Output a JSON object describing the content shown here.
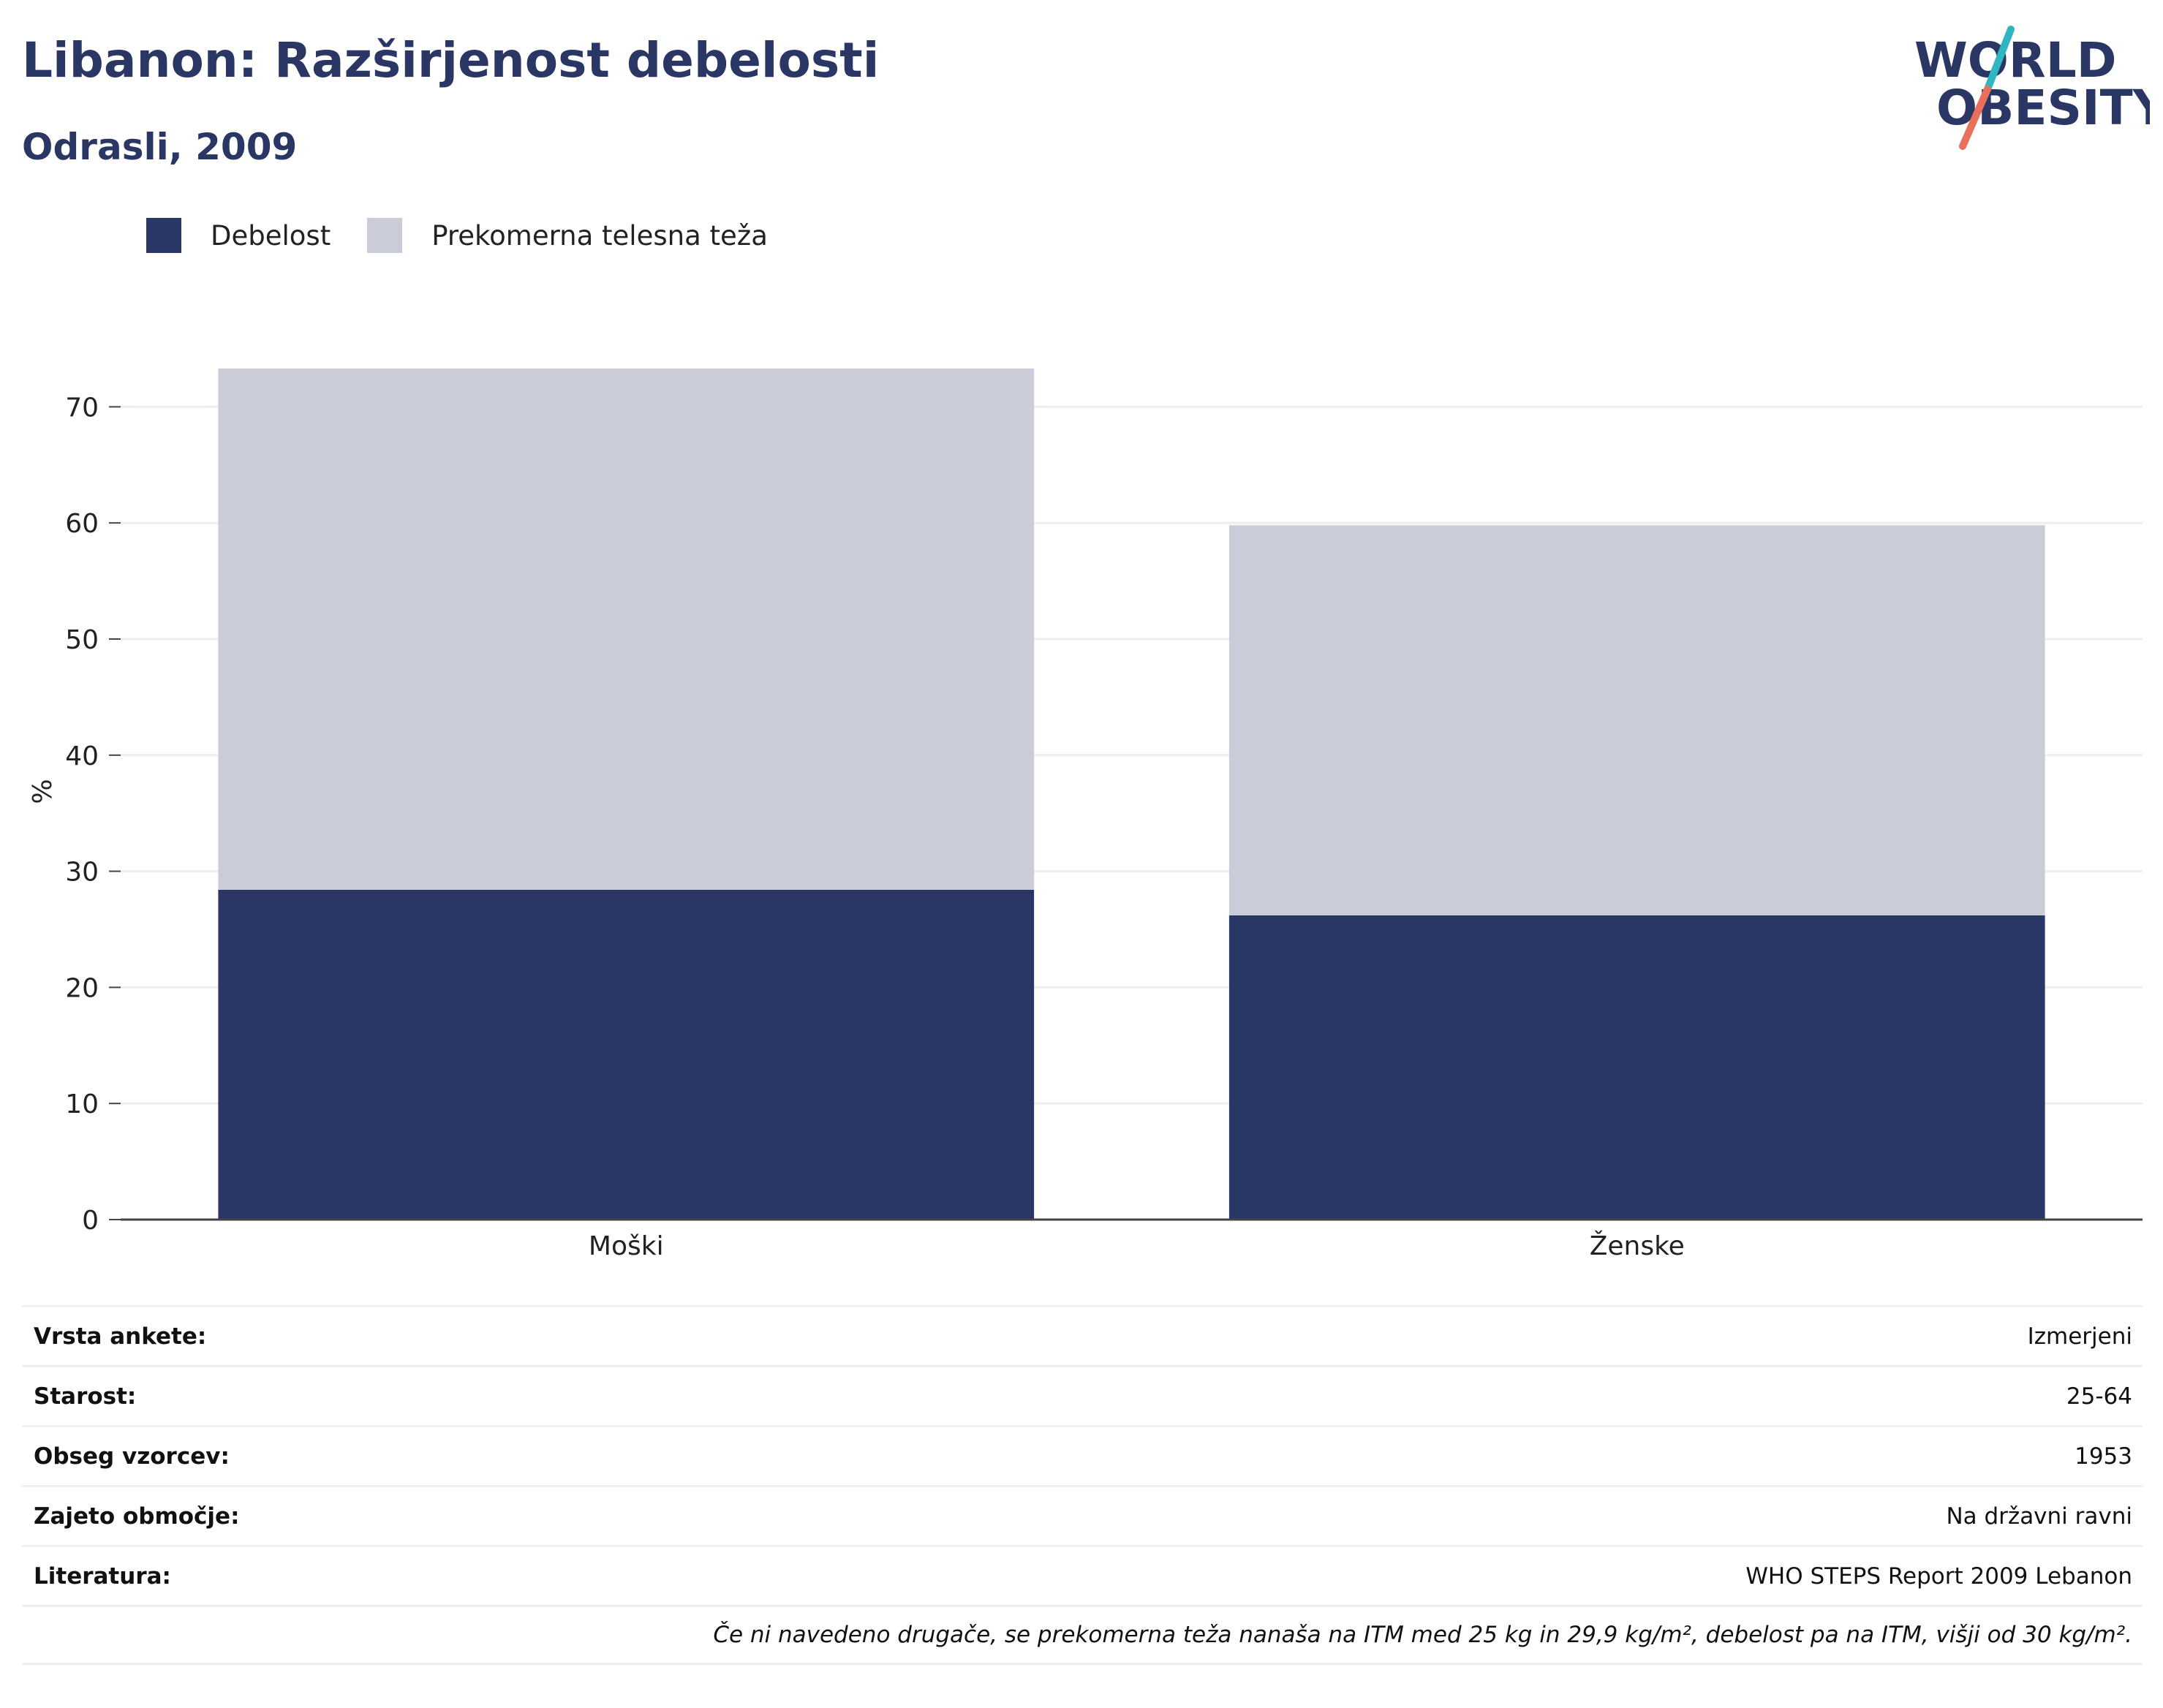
{
  "header": {
    "title": "Libanon: Razširjenost debelosti",
    "subtitle": "Odrasli, 2009"
  },
  "logo": {
    "line1": "WORLD",
    "line2": "OBESITY",
    "accent_teal": "#2fb6c0",
    "accent_red": "#e8705a"
  },
  "colors": {
    "obesity": "#2a3663",
    "overweight": "#cacdd8",
    "text": "#2a3663"
  },
  "legend": [
    {
      "label": "Debelost",
      "color": "#2a3663"
    },
    {
      "label": "Prekomerna telesna teža",
      "color": "#cacdd8"
    }
  ],
  "chart_data": {
    "type": "bar",
    "stacked": true,
    "categories": [
      "Moški",
      "Ženske"
    ],
    "series": [
      {
        "name": "Debelost",
        "values": [
          28.4,
          26.2
        ]
      },
      {
        "name": "Prekomerna telesna teža",
        "values": [
          44.9,
          33.6
        ]
      }
    ],
    "ylabel": "%",
    "ylim": [
      0,
      75
    ],
    "yticks": [
      0,
      10,
      20,
      30,
      40,
      50,
      60,
      70
    ],
    "grid": true
  },
  "info": {
    "rows": [
      {
        "key": "Vrsta ankete:",
        "value": "Izmerjeni"
      },
      {
        "key": "Starost:",
        "value": "25-64"
      },
      {
        "key": "Obseg vzorcev:",
        "value": "1953"
      },
      {
        "key": "Zajeto območje:",
        "value": "Na državni ravni"
      },
      {
        "key": "Literatura:",
        "value": "WHO STEPS Report 2009 Lebanon"
      }
    ],
    "note": "Če ni navedeno drugače, se prekomerna teža nanaša na ITM med 25 kg in 29,9 kg/m², debelost pa na ITM, višji od 30 kg/m²."
  }
}
